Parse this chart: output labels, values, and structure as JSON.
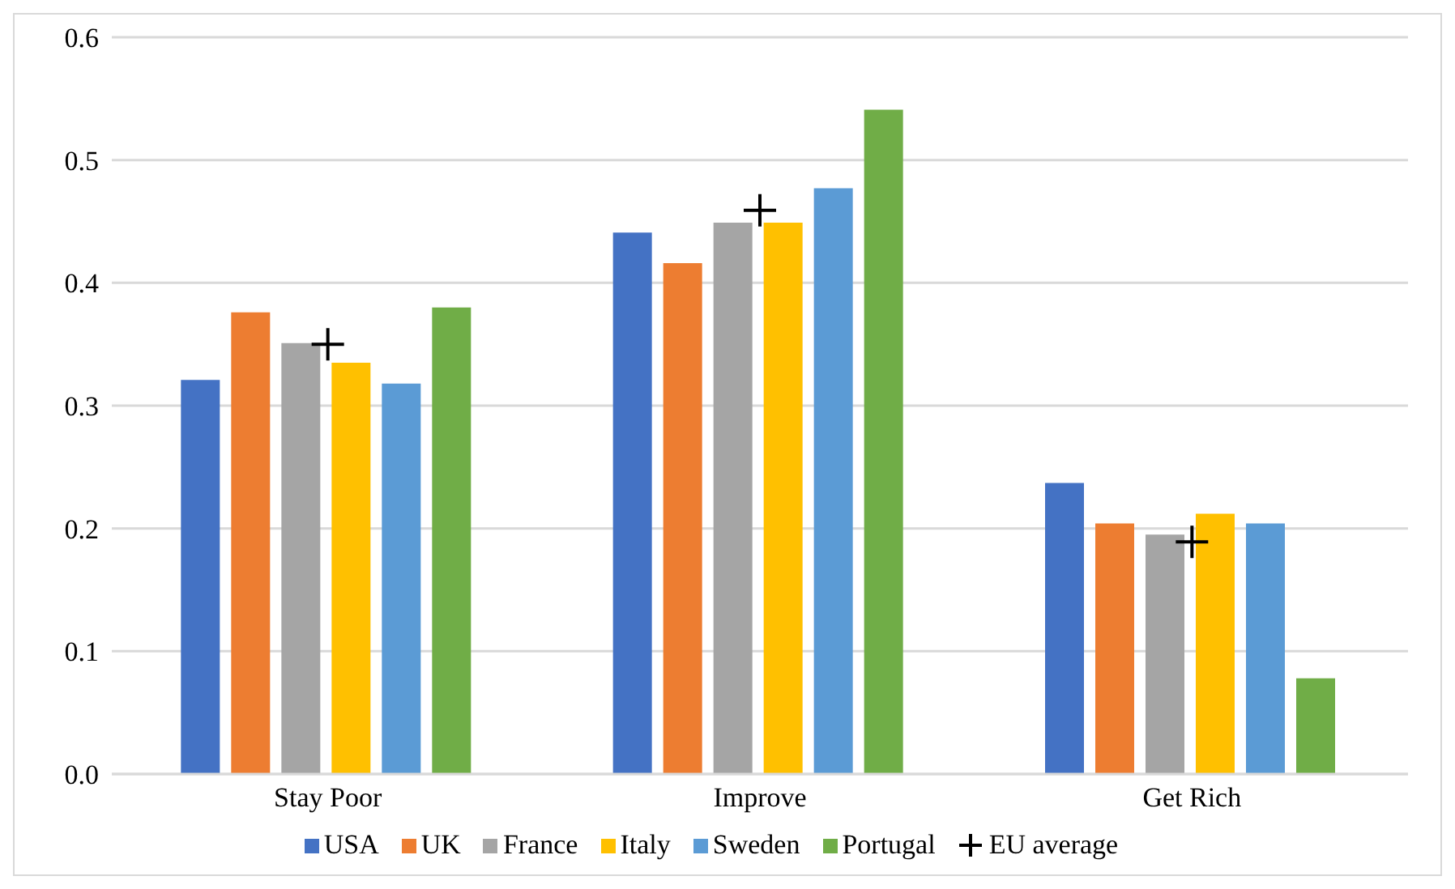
{
  "chart_data": {
    "type": "bar",
    "categories": [
      "Stay Poor",
      "Improve",
      "Get Rich"
    ],
    "series": [
      {
        "name": "USA",
        "color": "#4472c4",
        "values": [
          0.321,
          0.441,
          0.237
        ]
      },
      {
        "name": "UK",
        "color": "#ed7d31",
        "values": [
          0.376,
          0.416,
          0.204
        ]
      },
      {
        "name": "France",
        "color": "#a5a5a5",
        "values": [
          0.351,
          0.449,
          0.195
        ]
      },
      {
        "name": "Italy",
        "color": "#ffc000",
        "values": [
          0.335,
          0.449,
          0.212
        ]
      },
      {
        "name": "Sweden",
        "color": "#5b9bd5",
        "values": [
          0.318,
          0.477,
          0.204
        ]
      },
      {
        "name": "Portugal",
        "color": "#70ad47",
        "values": [
          0.38,
          0.541,
          0.078
        ]
      },
      {
        "name": "EU average",
        "type": "scatter",
        "color": "#000000",
        "marker": "cross",
        "x": [
          "Stay Poor",
          "Improve",
          "Get Rich"
        ],
        "values": [
          0.35,
          0.459,
          0.189
        ]
      }
    ],
    "ylim": [
      0,
      0.6
    ],
    "yticks": [
      {
        "value": 0,
        "label": "0.0"
      },
      {
        "value": 0.1,
        "label": "0.1"
      },
      {
        "value": 0.2,
        "label": "0.2"
      },
      {
        "value": 0.3,
        "label": "0.3"
      },
      {
        "value": 0.4,
        "label": "0.4"
      },
      {
        "value": 0.5,
        "label": "0.5"
      },
      {
        "value": 0.6,
        "label": "0.6"
      }
    ],
    "grid": "y",
    "legend": "bottom"
  }
}
